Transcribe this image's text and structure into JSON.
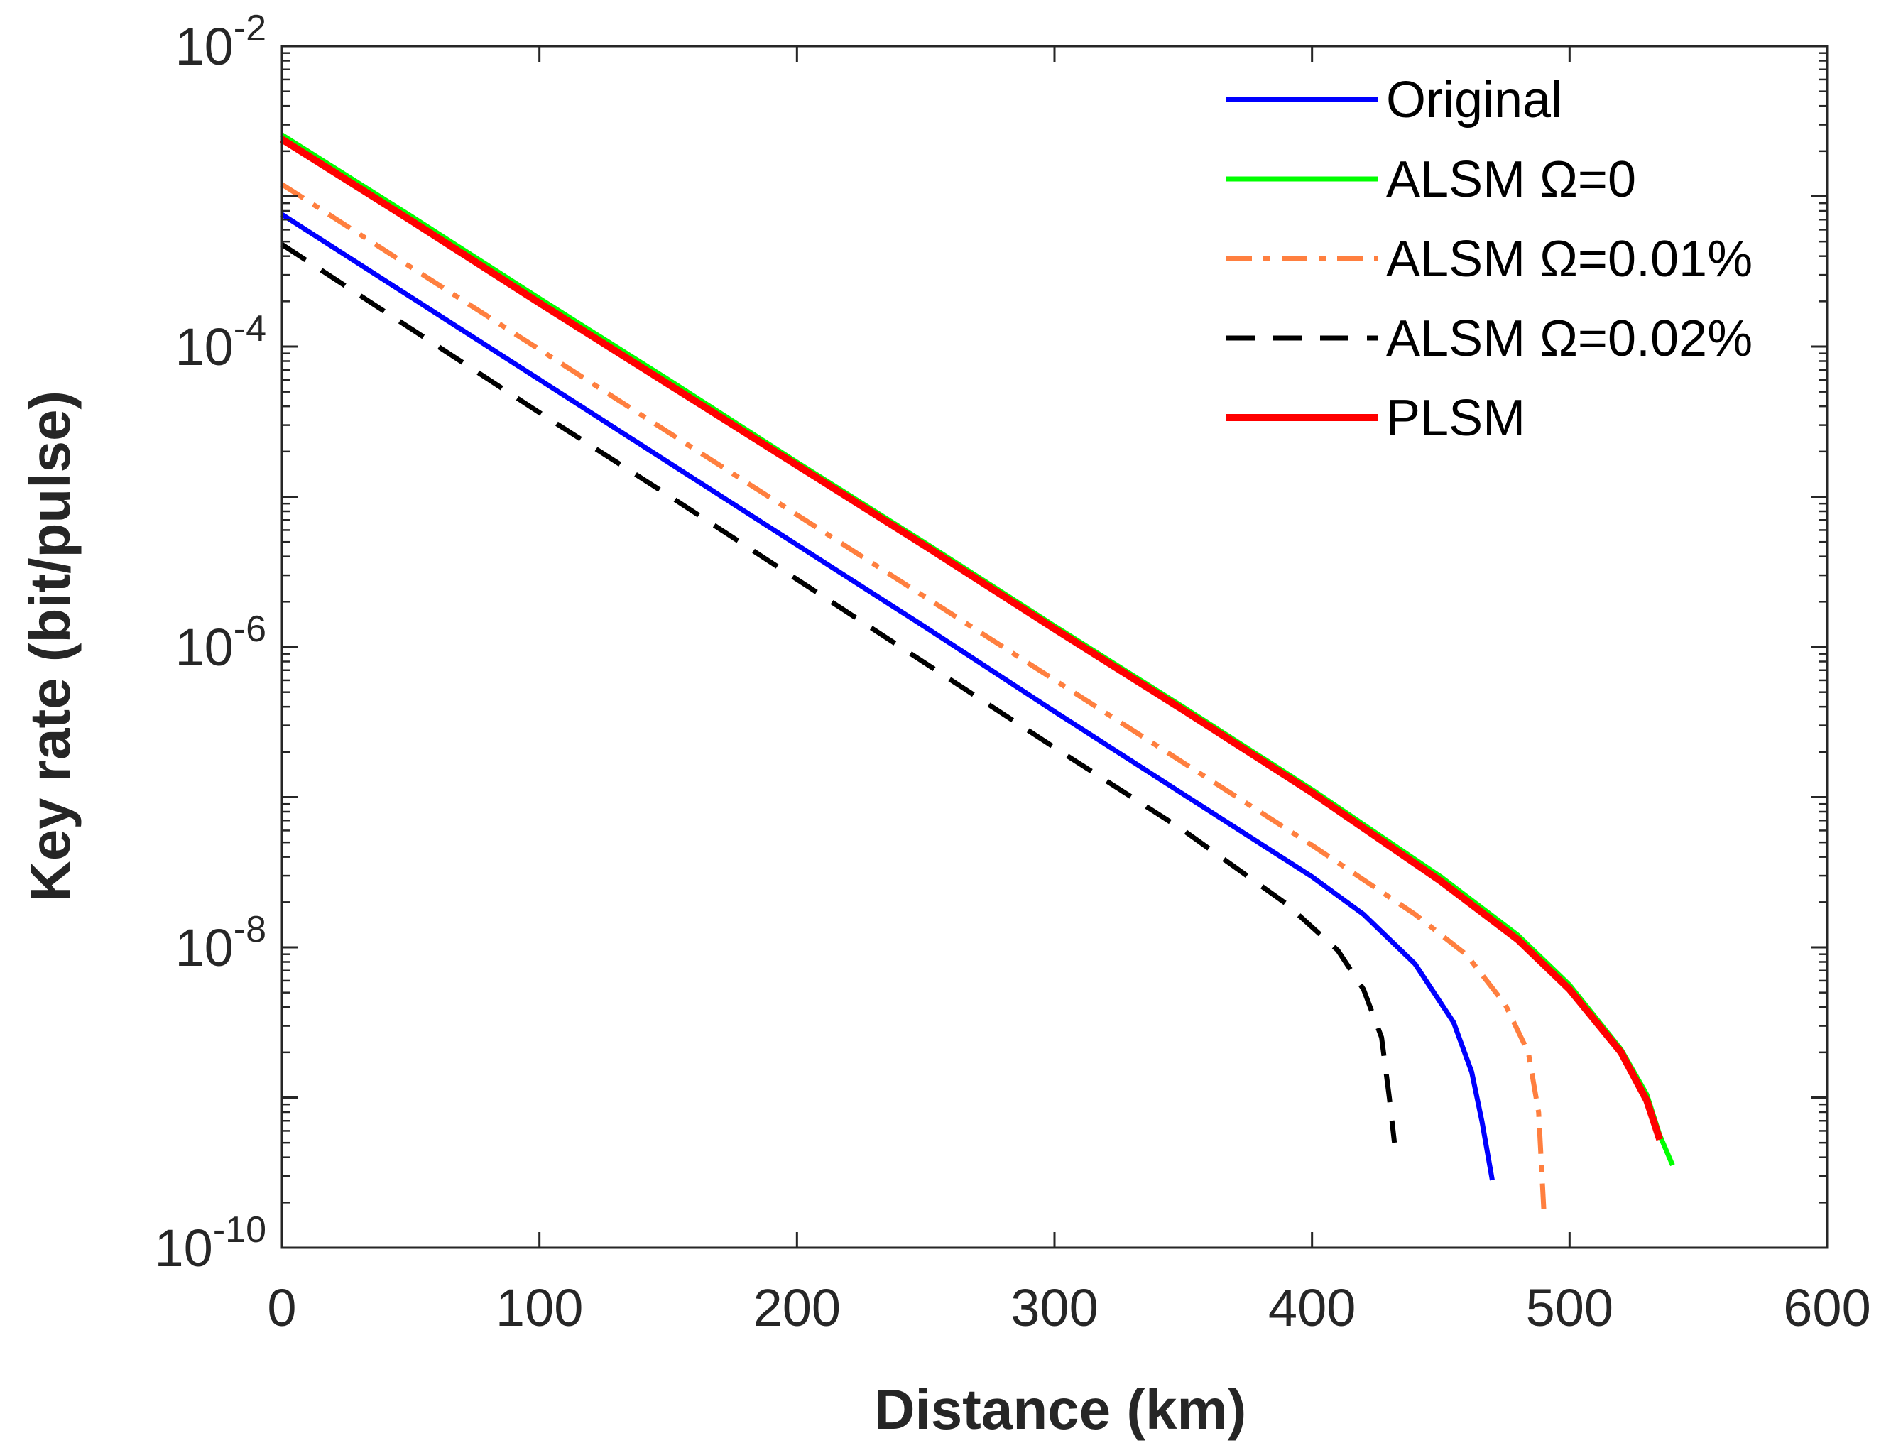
{
  "chart_data": {
    "type": "line",
    "title": "",
    "xlabel": "Distance (km)",
    "ylabel": "Key rate (bit/pulse)",
    "xlim": [
      0,
      600
    ],
    "ylim_log10": [
      -10,
      -2
    ],
    "yscale": "log",
    "grid": false,
    "legend_position": "top-right",
    "x_ticks": [
      {
        "value": 0,
        "label": "0"
      },
      {
        "value": 100,
        "label": "100"
      },
      {
        "value": 200,
        "label": "200"
      },
      {
        "value": 300,
        "label": "300"
      },
      {
        "value": 400,
        "label": "400"
      },
      {
        "value": 500,
        "label": "500"
      },
      {
        "value": 600,
        "label": "600"
      }
    ],
    "y_ticks": [
      {
        "exponent": -2,
        "base": "10",
        "exp_label": "-2"
      },
      {
        "exponent": -4,
        "base": "10",
        "exp_label": "-4"
      },
      {
        "exponent": -6,
        "base": "10",
        "exp_label": "-6"
      },
      {
        "exponent": -8,
        "base": "10",
        "exp_label": "-8"
      },
      {
        "exponent": -10,
        "base": "10",
        "exp_label": "-10"
      }
    ],
    "series": [
      {
        "name": "Original",
        "color": "#0000ff",
        "style": "solid",
        "points": [
          [
            0,
            -3.12
          ],
          [
            50,
            -3.67
          ],
          [
            100,
            -4.22
          ],
          [
            150,
            -4.77
          ],
          [
            200,
            -5.32
          ],
          [
            250,
            -5.87
          ],
          [
            300,
            -6.43
          ],
          [
            350,
            -6.98
          ],
          [
            400,
            -7.53
          ],
          [
            420,
            -7.78
          ],
          [
            440,
            -8.11
          ],
          [
            455,
            -8.5
          ],
          [
            462,
            -8.83
          ],
          [
            466,
            -9.16
          ],
          [
            470,
            -9.55
          ]
        ]
      },
      {
        "name": "ALSM Ω=0",
        "color": "#00ff00",
        "style": "solid",
        "points": [
          [
            0,
            -2.59
          ],
          [
            50,
            -3.13
          ],
          [
            100,
            -3.68
          ],
          [
            150,
            -4.22
          ],
          [
            200,
            -4.77
          ],
          [
            250,
            -5.31
          ],
          [
            300,
            -5.86
          ],
          [
            350,
            -6.4
          ],
          [
            400,
            -6.95
          ],
          [
            450,
            -7.53
          ],
          [
            480,
            -7.92
          ],
          [
            500,
            -8.25
          ],
          [
            520,
            -8.68
          ],
          [
            530,
            -8.98
          ],
          [
            535,
            -9.25
          ],
          [
            540,
            -9.45
          ]
        ]
      },
      {
        "name": "ALSM Ω=0.01%",
        "color": "#ff7f3f",
        "style": "dashdot",
        "points": [
          [
            0,
            -2.92
          ],
          [
            50,
            -3.47
          ],
          [
            100,
            -4.02
          ],
          [
            150,
            -4.57
          ],
          [
            200,
            -5.12
          ],
          [
            250,
            -5.67
          ],
          [
            300,
            -6.22
          ],
          [
            350,
            -6.77
          ],
          [
            400,
            -7.32
          ],
          [
            440,
            -7.78
          ],
          [
            460,
            -8.05
          ],
          [
            475,
            -8.38
          ],
          [
            484,
            -8.7
          ],
          [
            488,
            -9.1
          ],
          [
            490,
            -9.75
          ]
        ]
      },
      {
        "name": "ALSM Ω=0.02%",
        "color": "#000000",
        "style": "dashed",
        "points": [
          [
            0,
            -3.32
          ],
          [
            50,
            -3.88
          ],
          [
            100,
            -4.44
          ],
          [
            150,
            -4.99
          ],
          [
            200,
            -5.55
          ],
          [
            250,
            -6.11
          ],
          [
            300,
            -6.67
          ],
          [
            350,
            -7.22
          ],
          [
            390,
            -7.71
          ],
          [
            410,
            -8.02
          ],
          [
            420,
            -8.28
          ],
          [
            427,
            -8.6
          ],
          [
            430,
            -9.0
          ],
          [
            432,
            -9.3
          ]
        ]
      },
      {
        "name": "PLSM",
        "color": "#ff0000",
        "style": "solid",
        "points": [
          [
            0,
            -2.62
          ],
          [
            50,
            -3.16
          ],
          [
            100,
            -3.71
          ],
          [
            150,
            -4.25
          ],
          [
            200,
            -4.79
          ],
          [
            250,
            -5.33
          ],
          [
            300,
            -5.88
          ],
          [
            350,
            -6.42
          ],
          [
            400,
            -6.97
          ],
          [
            450,
            -7.56
          ],
          [
            480,
            -7.95
          ],
          [
            500,
            -8.28
          ],
          [
            520,
            -8.7
          ],
          [
            530,
            -9.02
          ],
          [
            535,
            -9.28
          ]
        ]
      }
    ]
  }
}
